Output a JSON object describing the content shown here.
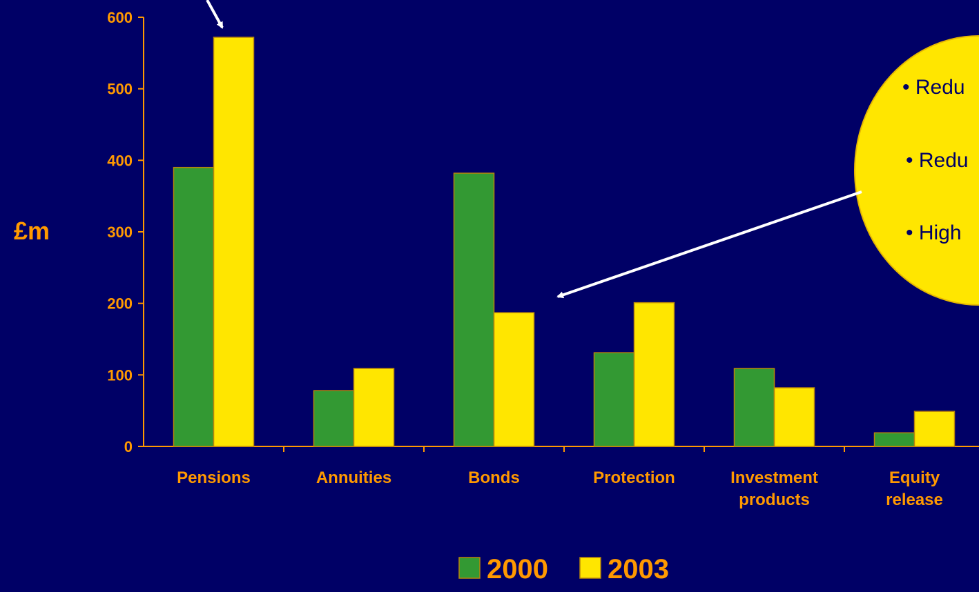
{
  "colors": {
    "background": "#000066",
    "axis_text": "#FF9900",
    "axis_line": "#FF9900",
    "series_2000": "#339933",
    "series_2003": "#FFE600",
    "bar_outline": "#B8860B",
    "bubble_fill": "#FFE600",
    "bubble_stroke": "#E6B800",
    "bubble_text": "#000066",
    "arrow": "#FFFFFF"
  },
  "chart_data": {
    "type": "bar",
    "title": "",
    "ylabel": "£m",
    "xlabel": "",
    "ylim": [
      0,
      600
    ],
    "yticks": [
      0,
      100,
      200,
      300,
      400,
      500,
      600
    ],
    "categories": [
      "Pensions",
      "Annuities",
      "Bonds",
      "Protection",
      "Investment products",
      "Equity release"
    ],
    "category_lines": [
      [
        "Pensions"
      ],
      [
        "Annuities"
      ],
      [
        "Bonds"
      ],
      [
        "Protection"
      ],
      [
        "Investment",
        "products"
      ],
      [
        "Equity",
        "release"
      ]
    ],
    "series": [
      {
        "name": "2000",
        "values": [
          390,
          78,
          382,
          131,
          109,
          19
        ]
      },
      {
        "name": "2003",
        "values": [
          572,
          109,
          187,
          201,
          82,
          49
        ]
      }
    ],
    "legend_position": "bottom",
    "grid": false
  },
  "callout": {
    "bullets": [
      "• Redu",
      "• Redu",
      "• High"
    ]
  }
}
